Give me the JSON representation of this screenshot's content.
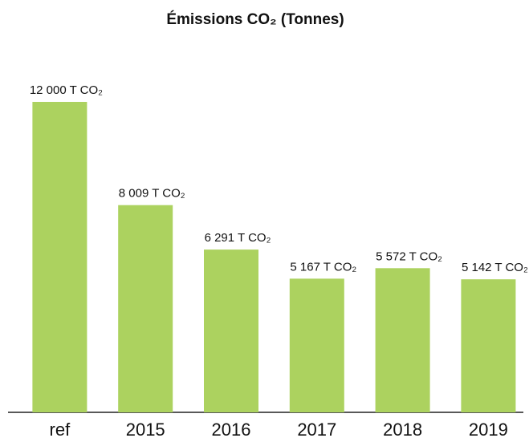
{
  "chart_data": {
    "type": "bar",
    "title": "Émissions CO₂ (Tonnes)",
    "categories": [
      "ref",
      "2015",
      "2016",
      "2017",
      "2018",
      "2019"
    ],
    "values": [
      12000,
      8009,
      6291,
      5167,
      5572,
      5142
    ],
    "value_labels": [
      "12 000 T CO₂",
      "8 009 T CO₂",
      "6 291 T CO₂",
      "5 167 T CO₂",
      "5 572 T CO₂",
      "5 142 T CO₂"
    ],
    "color": "#acd25f",
    "ylim": [
      0,
      12000
    ]
  }
}
